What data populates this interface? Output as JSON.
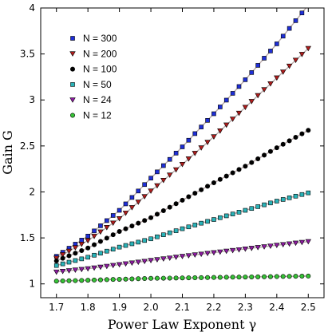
{
  "chart_data": {
    "type": "scatter",
    "title": "",
    "xlabel": "Power Law Exponent γ",
    "ylabel": "Gain G",
    "xlim": [
      1.65,
      2.55
    ],
    "ylim": [
      0.85,
      4.0
    ],
    "xticks": [
      "1.7",
      "1.8",
      "1.9",
      "2.0",
      "2.1",
      "2.2",
      "2.3",
      "2.4",
      "2.5"
    ],
    "yticks": [
      "1",
      "1.5",
      "2",
      "2.5",
      "3",
      "3.5",
      "4"
    ],
    "grid": false,
    "legend_position": "top-left",
    "x": [
      1.7,
      1.72,
      1.74,
      1.76,
      1.78,
      1.8,
      1.82,
      1.84,
      1.86,
      1.88,
      1.9,
      1.92,
      1.94,
      1.96,
      1.98,
      2.0,
      2.02,
      2.04,
      2.06,
      2.08,
      2.1,
      2.12,
      2.14,
      2.16,
      2.18,
      2.2,
      2.22,
      2.24,
      2.26,
      2.28,
      2.3,
      2.32,
      2.34,
      2.36,
      2.38,
      2.4,
      2.42,
      2.44,
      2.46,
      2.48,
      2.5
    ],
    "series": [
      {
        "name": "N = 300",
        "marker": "square",
        "color": "#1f2fd6",
        "values": [
          1.3,
          1.344,
          1.388,
          1.432,
          1.476,
          1.52,
          1.576,
          1.632,
          1.688,
          1.744,
          1.8,
          1.87,
          1.94,
          2.01,
          2.08,
          2.15,
          2.218,
          2.286,
          2.354,
          2.422,
          2.49,
          2.562,
          2.634,
          2.706,
          2.778,
          2.85,
          2.924,
          2.998,
          3.072,
          3.146,
          3.22,
          3.298,
          3.376,
          3.454,
          3.532,
          3.61,
          3.694,
          3.778,
          3.862,
          3.946,
          4.03
        ]
      },
      {
        "name": "N = 200",
        "marker": "triangle-down",
        "color": "#b01c1c",
        "values": [
          1.28,
          1.318,
          1.356,
          1.394,
          1.432,
          1.47,
          1.518,
          1.566,
          1.614,
          1.662,
          1.71,
          1.77,
          1.83,
          1.89,
          1.95,
          2.01,
          2.068,
          2.126,
          2.184,
          2.242,
          2.3,
          2.36,
          2.42,
          2.48,
          2.54,
          2.6,
          2.664,
          2.728,
          2.792,
          2.856,
          2.92,
          2.984,
          3.048,
          3.112,
          3.176,
          3.24,
          3.304,
          3.368,
          3.432,
          3.496,
          3.56
        ]
      },
      {
        "name": "N = 100",
        "marker": "circle",
        "color": "#000000",
        "values": [
          1.25,
          1.278,
          1.306,
          1.334,
          1.362,
          1.39,
          1.426,
          1.462,
          1.498,
          1.534,
          1.57,
          1.6,
          1.63,
          1.66,
          1.69,
          1.72,
          1.758,
          1.796,
          1.834,
          1.872,
          1.91,
          1.948,
          1.986,
          2.024,
          2.062,
          2.1,
          2.136,
          2.172,
          2.208,
          2.244,
          2.28,
          2.32,
          2.36,
          2.4,
          2.44,
          2.48,
          2.518,
          2.556,
          2.594,
          2.632,
          2.67
        ]
      },
      {
        "name": "N =  50",
        "marker": "square",
        "color": "#2ab3b8",
        "values": [
          1.2,
          1.218,
          1.236,
          1.254,
          1.272,
          1.29,
          1.312,
          1.334,
          1.356,
          1.378,
          1.4,
          1.418,
          1.436,
          1.454,
          1.472,
          1.49,
          1.512,
          1.534,
          1.556,
          1.578,
          1.6,
          1.62,
          1.64,
          1.66,
          1.68,
          1.7,
          1.72,
          1.74,
          1.76,
          1.78,
          1.8,
          1.82,
          1.84,
          1.86,
          1.88,
          1.9,
          1.918,
          1.936,
          1.954,
          1.972,
          1.99
        ]
      },
      {
        "name": "N = 24",
        "marker": "triangle-down",
        "color": "#8e1aa3",
        "values": [
          1.13,
          1.137,
          1.144,
          1.151,
          1.158,
          1.165,
          1.174,
          1.183,
          1.192,
          1.201,
          1.21,
          1.219,
          1.228,
          1.237,
          1.246,
          1.255,
          1.264,
          1.273,
          1.282,
          1.291,
          1.3,
          1.308,
          1.316,
          1.324,
          1.332,
          1.34,
          1.348,
          1.356,
          1.364,
          1.372,
          1.38,
          1.388,
          1.396,
          1.404,
          1.412,
          1.42,
          1.428,
          1.436,
          1.444,
          1.452,
          1.46
        ]
      },
      {
        "name": "N = 12",
        "marker": "circle",
        "color": "#36c236",
        "values": [
          1.03,
          1.032,
          1.034,
          1.036,
          1.038,
          1.04,
          1.042,
          1.044,
          1.046,
          1.048,
          1.05,
          1.052,
          1.054,
          1.056,
          1.058,
          1.06,
          1.061,
          1.062,
          1.063,
          1.064,
          1.065,
          1.066,
          1.067,
          1.068,
          1.069,
          1.07,
          1.071,
          1.072,
          1.073,
          1.074,
          1.075,
          1.076,
          1.077,
          1.078,
          1.079,
          1.08,
          1.081,
          1.082,
          1.083,
          1.084,
          1.085
        ]
      }
    ]
  }
}
